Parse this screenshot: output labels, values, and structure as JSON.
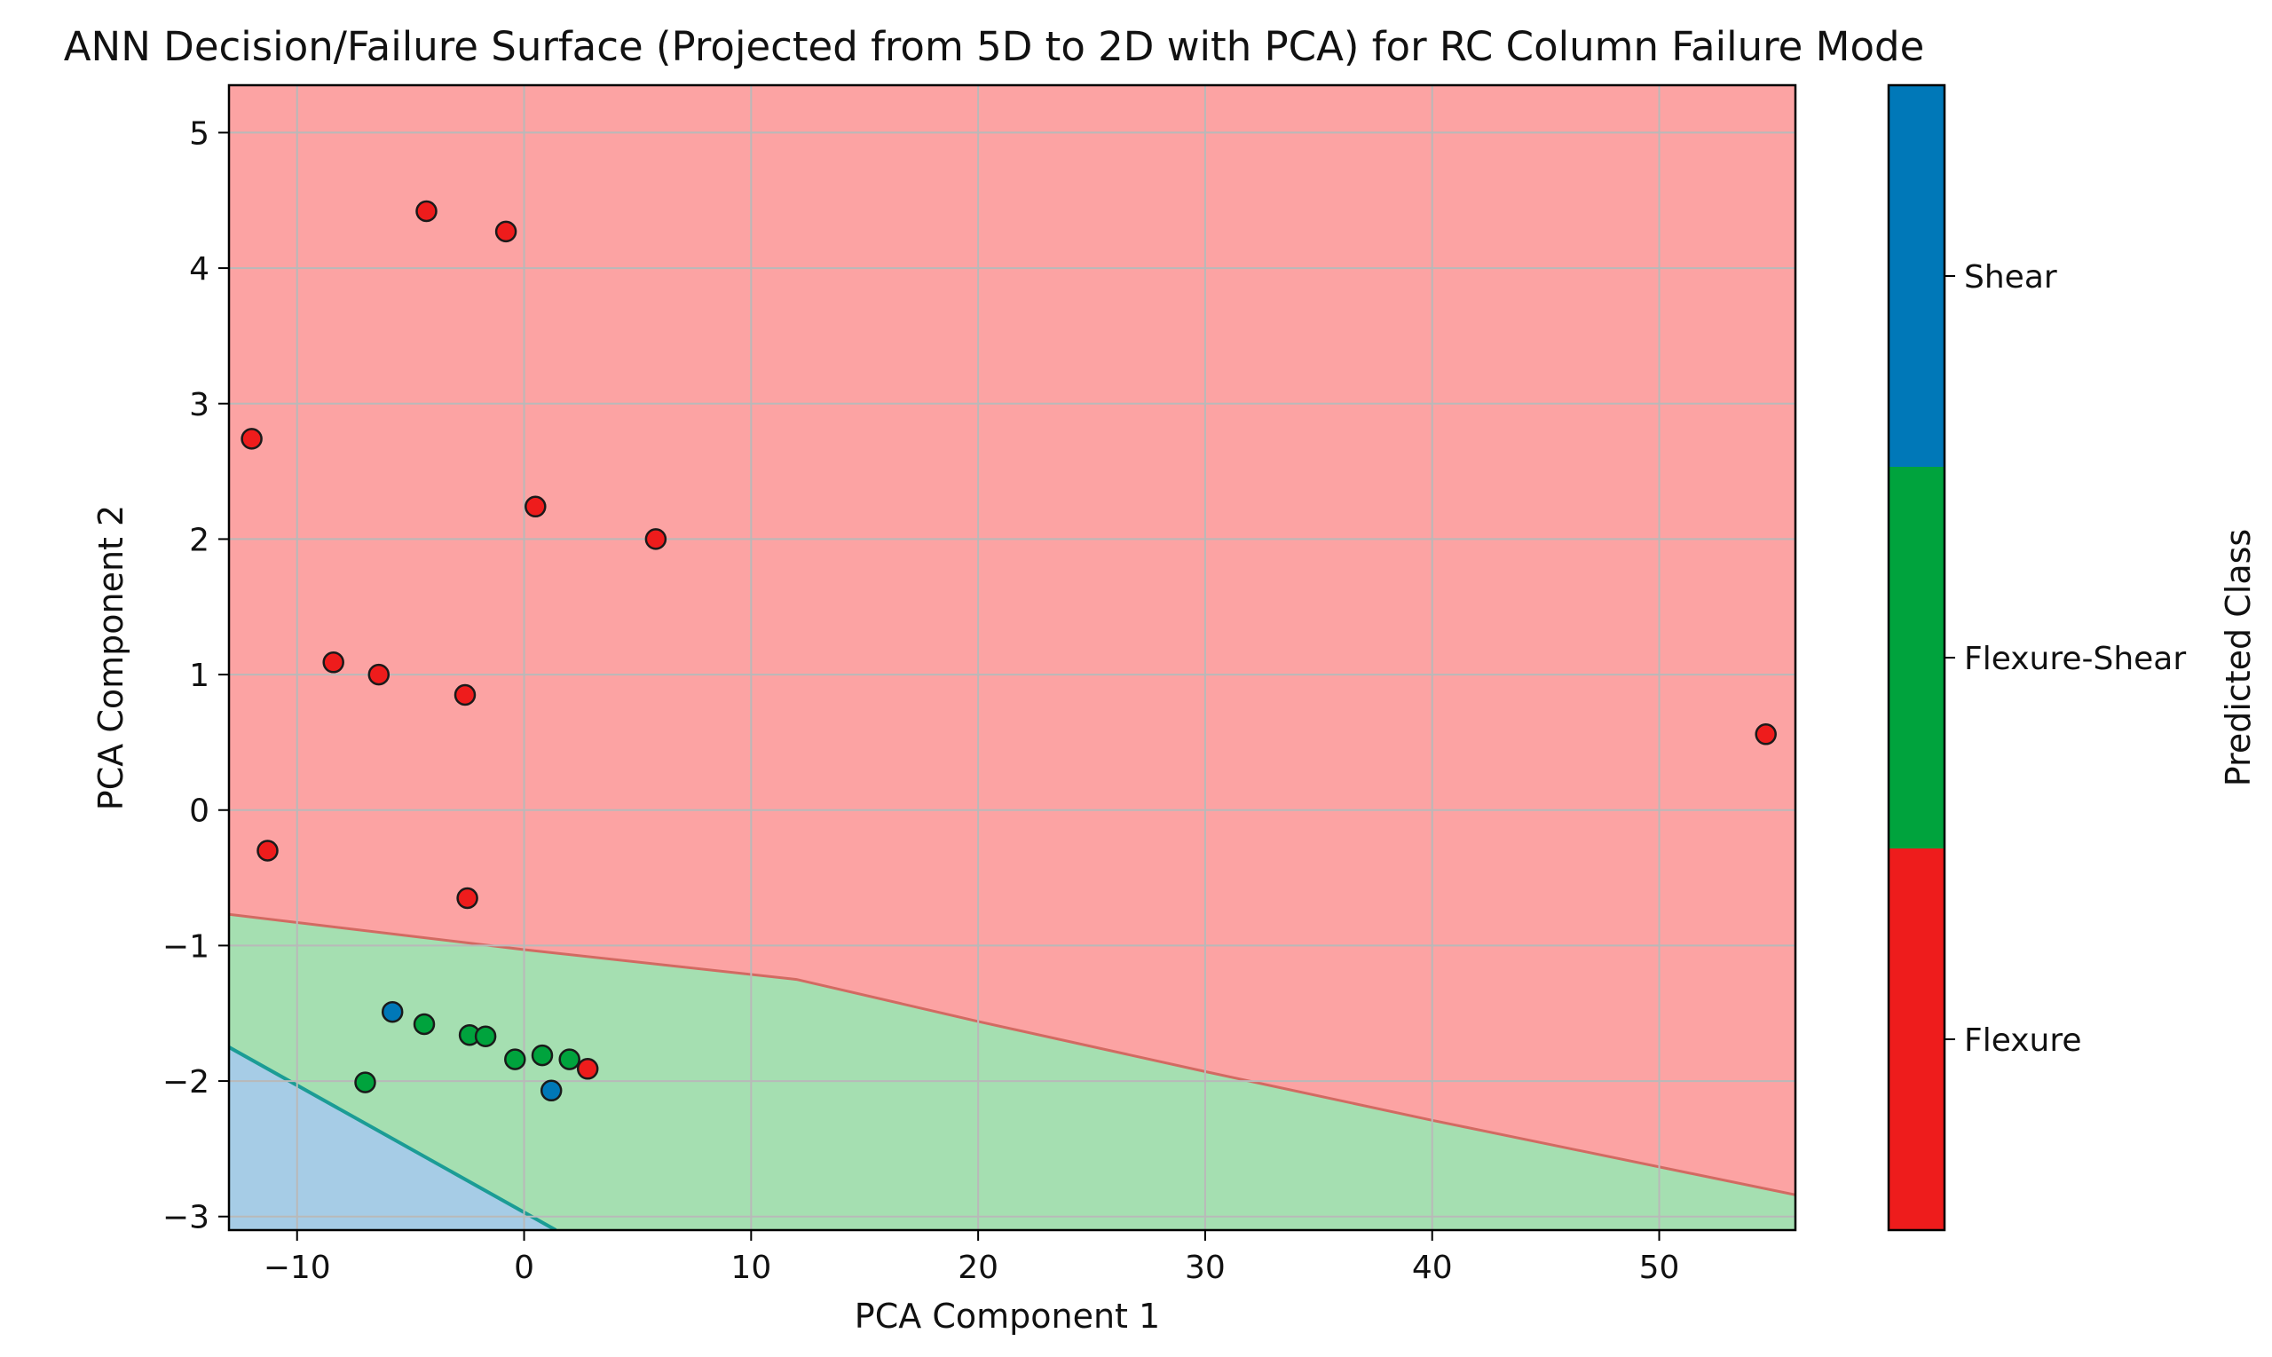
{
  "chart_data": {
    "type": "scatter",
    "title": "ANN Decision/Failure Surface (Projected from 5D to 2D with PCA) for RC Column Failure Mode",
    "xlabel": "PCA Component 1",
    "ylabel": "PCA Component 2",
    "xlim": [
      -13,
      56
    ],
    "ylim": [
      -3.1,
      5.35
    ],
    "xticks": [
      -10,
      0,
      10,
      20,
      30,
      40,
      50
    ],
    "yticks": [
      -3,
      -2,
      -1,
      0,
      1,
      2,
      3,
      4,
      5
    ],
    "grid": true,
    "colorbar": {
      "label": "Predicted Class",
      "classes": [
        "Flexure",
        "Flexure-Shear",
        "Shear"
      ]
    },
    "class_colors": {
      "Flexure": "#ee1c1c",
      "Flexure-Shear": "#00a33d",
      "Shear": "#0078b8"
    },
    "region_colors": {
      "Flexure": "#fca3a3",
      "Flexure-Shear": "#a5dfb1",
      "Shear": "#a6cce6"
    },
    "decision_boundaries": {
      "flexure_vs_flexure_shear": [
        [
          -13,
          -0.77
        ],
        [
          0,
          -1.03
        ],
        [
          12,
          -1.25
        ],
        [
          20,
          -1.56
        ],
        [
          30,
          -1.93
        ],
        [
          40,
          -2.29
        ],
        [
          56,
          -2.84
        ]
      ],
      "flexure_shear_vs_shear": [
        [
          -13,
          -1.75
        ],
        [
          1.4,
          -3.1
        ]
      ]
    },
    "series": [
      {
        "name": "Flexure",
        "points": [
          [
            -4.3,
            4.42
          ],
          [
            -0.8,
            4.27
          ],
          [
            -12,
            2.74
          ],
          [
            0.5,
            2.24
          ],
          [
            5.8,
            2.0
          ],
          [
            -8.4,
            1.09
          ],
          [
            -6.4,
            1.0
          ],
          [
            -2.6,
            0.85
          ],
          [
            -11.3,
            -0.3
          ],
          [
            -2.5,
            -0.65
          ],
          [
            54.7,
            0.56
          ],
          [
            2.8,
            -1.91
          ]
        ]
      },
      {
        "name": "Flexure-Shear",
        "points": [
          [
            -4.4,
            -1.58
          ],
          [
            -2.4,
            -1.66
          ],
          [
            -1.7,
            -1.67
          ],
          [
            -0.4,
            -1.84
          ],
          [
            0.8,
            -1.81
          ],
          [
            2.0,
            -1.84
          ],
          [
            -7,
            -2.01
          ]
        ]
      },
      {
        "name": "Shear",
        "points": [
          [
            -5.8,
            -1.49
          ],
          [
            1.2,
            -2.07
          ]
        ]
      }
    ]
  }
}
